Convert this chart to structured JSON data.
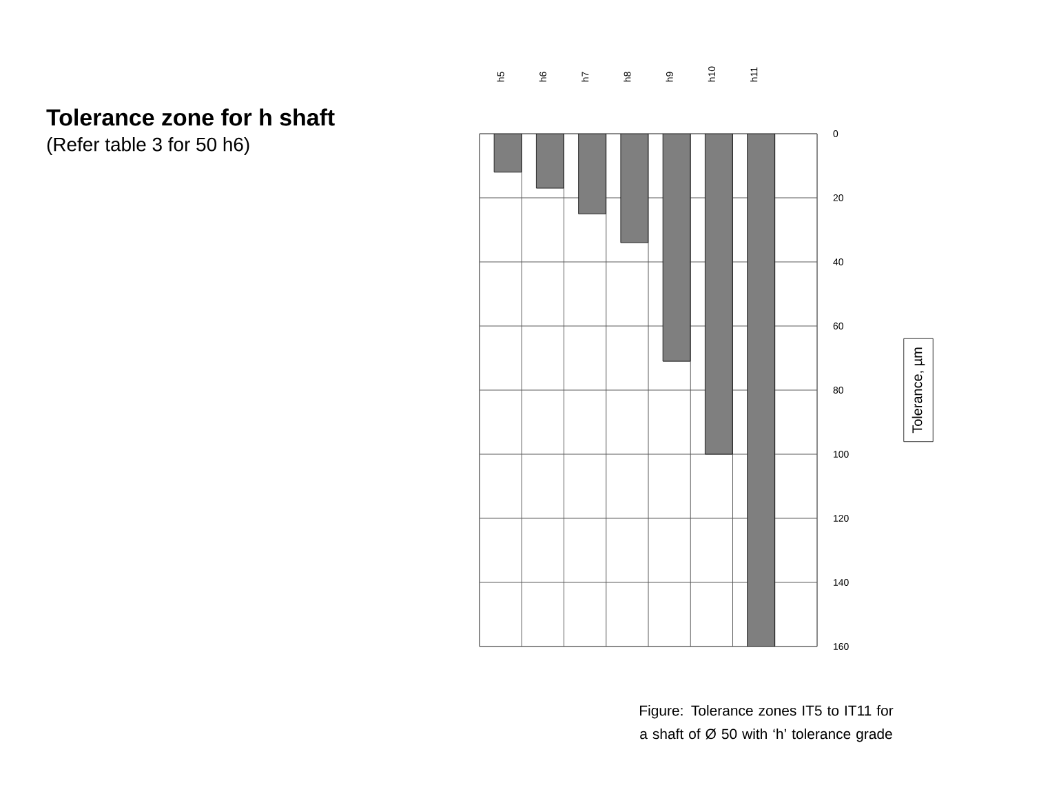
{
  "chart_data": {
    "type": "bar",
    "title": "Tolerance zone for h shaft",
    "subtitle": "(Refer table 3 for 50 h6)",
    "ylabel": "Tolerance, µm",
    "annotations": [
      "Figure: Tolerance zones IT5 to IT11 for a shaft of Ø 50 with ‘h’ tolerance grade"
    ],
    "categories": [
      "h5",
      "h6",
      "h7",
      "h8",
      "h9",
      "h10",
      "h11"
    ],
    "values": [
      12,
      17,
      25,
      34,
      71,
      100,
      160
    ],
    "color": "#7f7f7f",
    "ylim": [
      160,
      0
    ],
    "yticks": [
      0,
      20,
      40,
      60,
      80,
      100,
      120,
      140,
      160
    ],
    "grid": true
  }
}
